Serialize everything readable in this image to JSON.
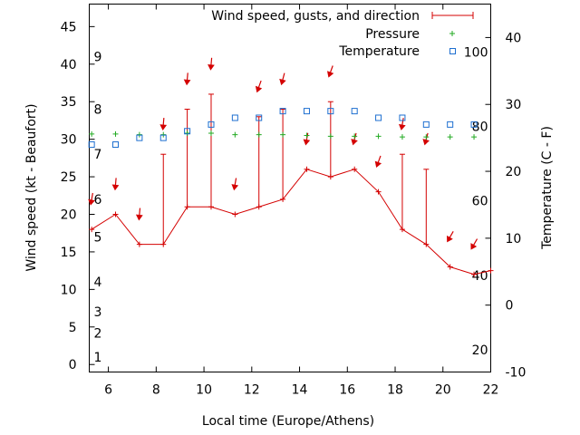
{
  "colors": {
    "wind": "#d40000",
    "pressure": "#22aa22",
    "temperature": "#1e6fd0",
    "axis": "#000000",
    "background": "#ffffff"
  },
  "chart_data": {
    "type": "line",
    "title": "",
    "xlabel": "Local time (Europe/Athens)",
    "ylabel": "Wind speed (kt - Beaufort)",
    "y2label": "Temperature (C - F)",
    "xlim": [
      5.2,
      22
    ],
    "ylim": [
      -1,
      48
    ],
    "y2lim": [
      -10,
      45
    ],
    "grid": false,
    "legend_position": "top-right",
    "x_ticks": [
      6,
      8,
      10,
      12,
      14,
      16,
      18,
      20,
      22
    ],
    "y_ticks": [
      0,
      5,
      10,
      15,
      20,
      25,
      30,
      35,
      40,
      45
    ],
    "y2_ticks": [
      -10,
      0,
      10,
      20,
      30,
      40
    ],
    "beaufort_labels": [
      {
        "label": "1",
        "kt": 1.0
      },
      {
        "label": "2",
        "kt": 4.2
      },
      {
        "label": "3",
        "kt": 7.0
      },
      {
        "label": "4",
        "kt": 11.0
      },
      {
        "label": "5",
        "kt": 17.0
      },
      {
        "label": "6",
        "kt": 22.0
      },
      {
        "label": "7",
        "kt": 28.0
      },
      {
        "label": "8",
        "kt": 34.0
      },
      {
        "label": "9",
        "kt": 41.0
      }
    ],
    "fahrenheit_labels": [
      {
        "label": "20",
        "c": -6.7
      },
      {
        "label": "40",
        "c": 4.4
      },
      {
        "label": "60",
        "c": 15.6
      },
      {
        "label": "80",
        "c": 26.7
      },
      {
        "label": "100",
        "c": 37.8
      }
    ],
    "series": [
      {
        "name": "Wind speed, gusts, and direction",
        "kind": "wind",
        "x": [
          5.3,
          6.3,
          7.3,
          8.3,
          9.3,
          10.3,
          11.3,
          12.3,
          13.3,
          14.3,
          15.3,
          16.3,
          17.3,
          18.3,
          19.3,
          20.3,
          21.3,
          22.0
        ],
        "speed": [
          18,
          20,
          16,
          16,
          21,
          21,
          20,
          21,
          22,
          26,
          25,
          26,
          23,
          18,
          16,
          13,
          12,
          12.5
        ],
        "gust": [
          null,
          null,
          null,
          28,
          34,
          36,
          null,
          33,
          34,
          null,
          35,
          null,
          null,
          28,
          26,
          null,
          null,
          null
        ],
        "arrow_y": [
          22,
          24,
          20,
          32,
          38,
          40,
          24,
          37,
          38,
          30,
          39,
          30,
          27,
          32,
          30,
          17,
          16,
          null
        ],
        "arrow_angle": [
          10,
          5,
          5,
          5,
          5,
          5,
          10,
          20,
          15,
          10,
          20,
          15,
          20,
          10,
          15,
          30,
          30,
          null
        ]
      },
      {
        "name": "Pressure",
        "kind": "pressure",
        "x": [
          5.3,
          6.3,
          7.3,
          8.3,
          9.3,
          10.3,
          11.3,
          12.3,
          13.3,
          14.3,
          15.3,
          16.3,
          17.3,
          18.3,
          19.3,
          20.3,
          21.3
        ],
        "values": [
          30.7,
          30.7,
          30.6,
          30.6,
          30.8,
          30.8,
          30.6,
          30.6,
          30.6,
          30.5,
          30.4,
          30.4,
          30.4,
          30.3,
          30.3,
          30.3,
          30.3
        ]
      },
      {
        "name": "Temperature",
        "kind": "temperature",
        "x": [
          5.3,
          6.3,
          7.3,
          8.3,
          9.3,
          10.3,
          11.3,
          12.3,
          13.3,
          14.3,
          15.3,
          16.3,
          17.3,
          18.3,
          19.3,
          20.3,
          21.3
        ],
        "values": [
          24.0,
          24.0,
          25.0,
          25.0,
          26.0,
          27.0,
          28.0,
          28.0,
          29.0,
          29.0,
          29.0,
          29.0,
          28.0,
          28.0,
          27.0,
          27.0,
          27.0
        ]
      }
    ]
  }
}
